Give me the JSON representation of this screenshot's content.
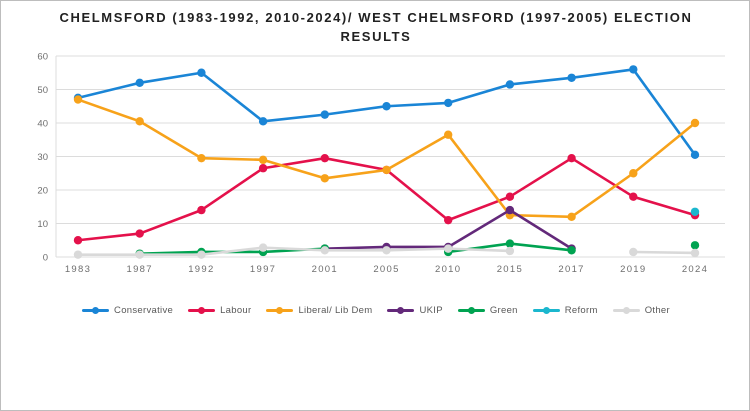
{
  "title": {
    "line1": "CHELMSFORD (1983-1992, 2010-2024)/ WEST CHELMSFORD (1997-2005) ELECTION",
    "line2": "RESULTS"
  },
  "chart_data": {
    "type": "line",
    "title": "CHELMSFORD (1983-1992, 2010-2024)/ WEST CHELMSFORD (1997-2005) ELECTION RESULTS",
    "categories": [
      "1983",
      "1987",
      "1992",
      "1997",
      "2001",
      "2005",
      "2010",
      "2015",
      "2017",
      "2019",
      "2024"
    ],
    "series": [
      {
        "name": "Conservative",
        "color": "#1A85D6",
        "values": [
          47.5,
          52,
          55,
          40.5,
          42.5,
          45,
          46,
          51.5,
          53.5,
          56,
          30.5
        ]
      },
      {
        "name": "Labour",
        "color": "#E4114B",
        "values": [
          5,
          7,
          14,
          26.5,
          29.5,
          26,
          11,
          18,
          29.5,
          18,
          12.5
        ]
      },
      {
        "name": "Liberal/ Lib Dem",
        "color": "#F7A21A",
        "values": [
          47,
          40.5,
          29.5,
          29,
          23.5,
          26,
          36.5,
          12.5,
          12,
          25,
          40
        ]
      },
      {
        "name": "UKIP",
        "color": "#63297A",
        "values": [
          null,
          null,
          null,
          null,
          2.5,
          3,
          3,
          14,
          2.5,
          null,
          null
        ]
      },
      {
        "name": "Green",
        "color": "#00A351",
        "values": [
          null,
          1,
          1.5,
          1.5,
          2.5,
          null,
          1.5,
          4,
          2,
          null,
          3.5
        ]
      },
      {
        "name": "Reform",
        "color": "#1BB7CE",
        "values": [
          null,
          null,
          null,
          null,
          null,
          null,
          null,
          null,
          null,
          null,
          13.5
        ]
      },
      {
        "name": "Other",
        "color": "#D9D9D9",
        "values": [
          0.7,
          0.7,
          0.7,
          2.8,
          2,
          2,
          2.5,
          1.8,
          null,
          1.5,
          1.2
        ]
      }
    ],
    "ylim": [
      0,
      60
    ],
    "yticks": [
      0,
      10,
      20,
      30,
      40,
      50,
      60
    ],
    "xlabel": "",
    "ylabel": "",
    "grid": "horizontal",
    "legend_position": "bottom"
  }
}
